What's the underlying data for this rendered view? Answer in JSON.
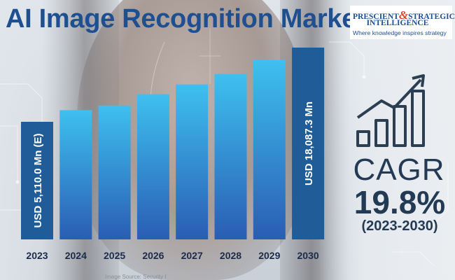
{
  "title": "AI Image Recognition Market",
  "logo": {
    "line1_left": "PRESCIENT",
    "line1_amp": "&",
    "line1_right": "STRATEGIC",
    "line2": "INTELLIGENCE",
    "tagline": "Where knowledge inspires strategy"
  },
  "chart_data": {
    "type": "bar",
    "title": "AI Image Recognition Market",
    "categories": [
      "2023",
      "2024",
      "2025",
      "2026",
      "2027",
      "2028",
      "2029",
      "2030"
    ],
    "values": [
      5110.0,
      6120,
      6520,
      7500,
      8350,
      9260,
      10450,
      18087.3
    ],
    "unit": "USD Mn",
    "axis_break": true,
    "data_labels": {
      "2023": "USD 5,110.0 Mn (E)",
      "2030": "USD 18,087.3 Mn"
    },
    "colors": {
      "gradient_top": "#3ec0f0",
      "gradient_bottom": "#2a5db3",
      "endpoint_bars": "#1f5c98",
      "year_labels": "#1d2b4a"
    }
  },
  "cagr": {
    "label": "CAGR",
    "value": "19.8%",
    "period": "(2023-2030)"
  },
  "source_note": "Image Source: Security I",
  "growth_icon": "bar-chart-growth-arrow-icon"
}
